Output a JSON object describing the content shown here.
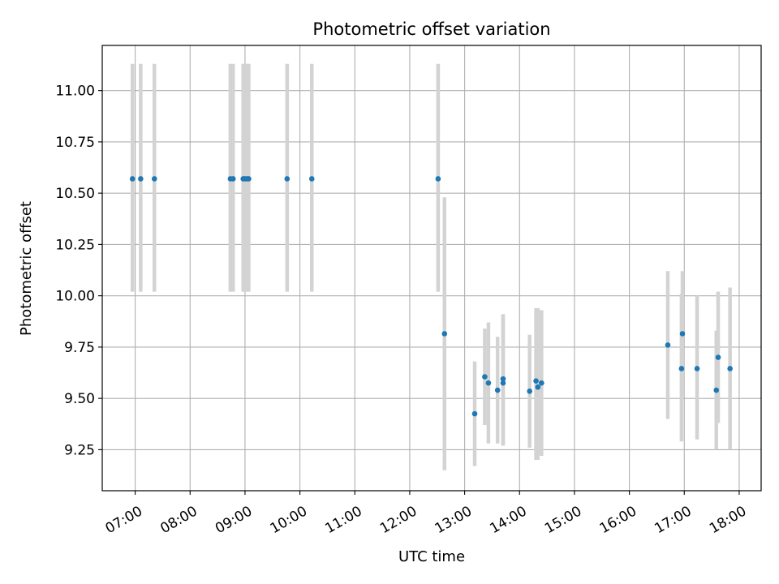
{
  "chart_data": {
    "type": "scatter",
    "title": "Photometric offset variation",
    "xlabel": "UTC time",
    "ylabel": "Photometric offset",
    "x_ticks": [
      "07:00",
      "08:00",
      "09:00",
      "10:00",
      "11:00",
      "12:00",
      "13:00",
      "14:00",
      "15:00",
      "16:00",
      "17:00",
      "18:00"
    ],
    "y_ticks": [
      "9.25",
      "9.50",
      "9.75",
      "10.00",
      "10.25",
      "10.50",
      "10.75",
      "11.00"
    ],
    "xlim": [
      "06:24",
      "18:24"
    ],
    "ylim": [
      9.05,
      11.22
    ],
    "grid": true,
    "colors": {
      "point": "#1f77b4",
      "errorbar": "#d3d3d3",
      "grid": "#b0b0b0"
    },
    "points": [
      {
        "x": "06:57",
        "y": 10.57,
        "ylo": 10.02,
        "yhi": 11.13
      },
      {
        "x": "07:06",
        "y": 10.57,
        "ylo": 10.02,
        "yhi": 11.13
      },
      {
        "x": "07:21",
        "y": 10.57,
        "ylo": 10.02,
        "yhi": 11.13
      },
      {
        "x": "08:44",
        "y": 10.57,
        "ylo": 10.02,
        "yhi": 11.13
      },
      {
        "x": "08:47",
        "y": 10.57,
        "ylo": 10.02,
        "yhi": 11.13
      },
      {
        "x": "08:58",
        "y": 10.57,
        "ylo": 10.02,
        "yhi": 11.13
      },
      {
        "x": "09:00",
        "y": 10.57,
        "ylo": 10.02,
        "yhi": 11.13
      },
      {
        "x": "09:02",
        "y": 10.57,
        "ylo": 10.02,
        "yhi": 11.13
      },
      {
        "x": "09:04",
        "y": 10.57,
        "ylo": 10.02,
        "yhi": 11.13
      },
      {
        "x": "09:46",
        "y": 10.57,
        "ylo": 10.02,
        "yhi": 11.13
      },
      {
        "x": "10:13",
        "y": 10.57,
        "ylo": 10.02,
        "yhi": 11.13
      },
      {
        "x": "12:31",
        "y": 10.57,
        "ylo": 10.02,
        "yhi": 11.13
      },
      {
        "x": "12:38",
        "y": 9.815,
        "ylo": 9.15,
        "yhi": 10.48
      },
      {
        "x": "13:11",
        "y": 9.425,
        "ylo": 9.17,
        "yhi": 9.68
      },
      {
        "x": "13:22",
        "y": 9.605,
        "ylo": 9.37,
        "yhi": 9.84
      },
      {
        "x": "13:26",
        "y": 9.575,
        "ylo": 9.28,
        "yhi": 9.87
      },
      {
        "x": "13:36",
        "y": 9.54,
        "ylo": 9.28,
        "yhi": 9.8
      },
      {
        "x": "13:42",
        "y": 9.595,
        "ylo": 9.27,
        "yhi": 9.91
      },
      {
        "x": "13:42",
        "y": 9.575,
        "ylo": 9.27,
        "yhi": 9.91
      },
      {
        "x": "14:11",
        "y": 9.535,
        "ylo": 9.26,
        "yhi": 9.81
      },
      {
        "x": "14:18",
        "y": 9.585,
        "ylo": 9.2,
        "yhi": 9.94
      },
      {
        "x": "14:20",
        "y": 9.555,
        "ylo": 9.2,
        "yhi": 9.94
      },
      {
        "x": "14:24",
        "y": 9.575,
        "ylo": 9.22,
        "yhi": 9.93
      },
      {
        "x": "16:42",
        "y": 9.76,
        "ylo": 9.4,
        "yhi": 10.12
      },
      {
        "x": "16:57",
        "y": 9.645,
        "ylo": 9.29,
        "yhi": 10.01
      },
      {
        "x": "16:58",
        "y": 9.815,
        "ylo": 9.51,
        "yhi": 10.12
      },
      {
        "x": "17:14",
        "y": 9.645,
        "ylo": 9.3,
        "yhi": 10.0
      },
      {
        "x": "17:35",
        "y": 9.54,
        "ylo": 9.25,
        "yhi": 9.83
      },
      {
        "x": "17:37",
        "y": 9.7,
        "ylo": 9.38,
        "yhi": 10.02
      },
      {
        "x": "17:50",
        "y": 9.645,
        "ylo": 9.25,
        "yhi": 10.04
      }
    ]
  }
}
